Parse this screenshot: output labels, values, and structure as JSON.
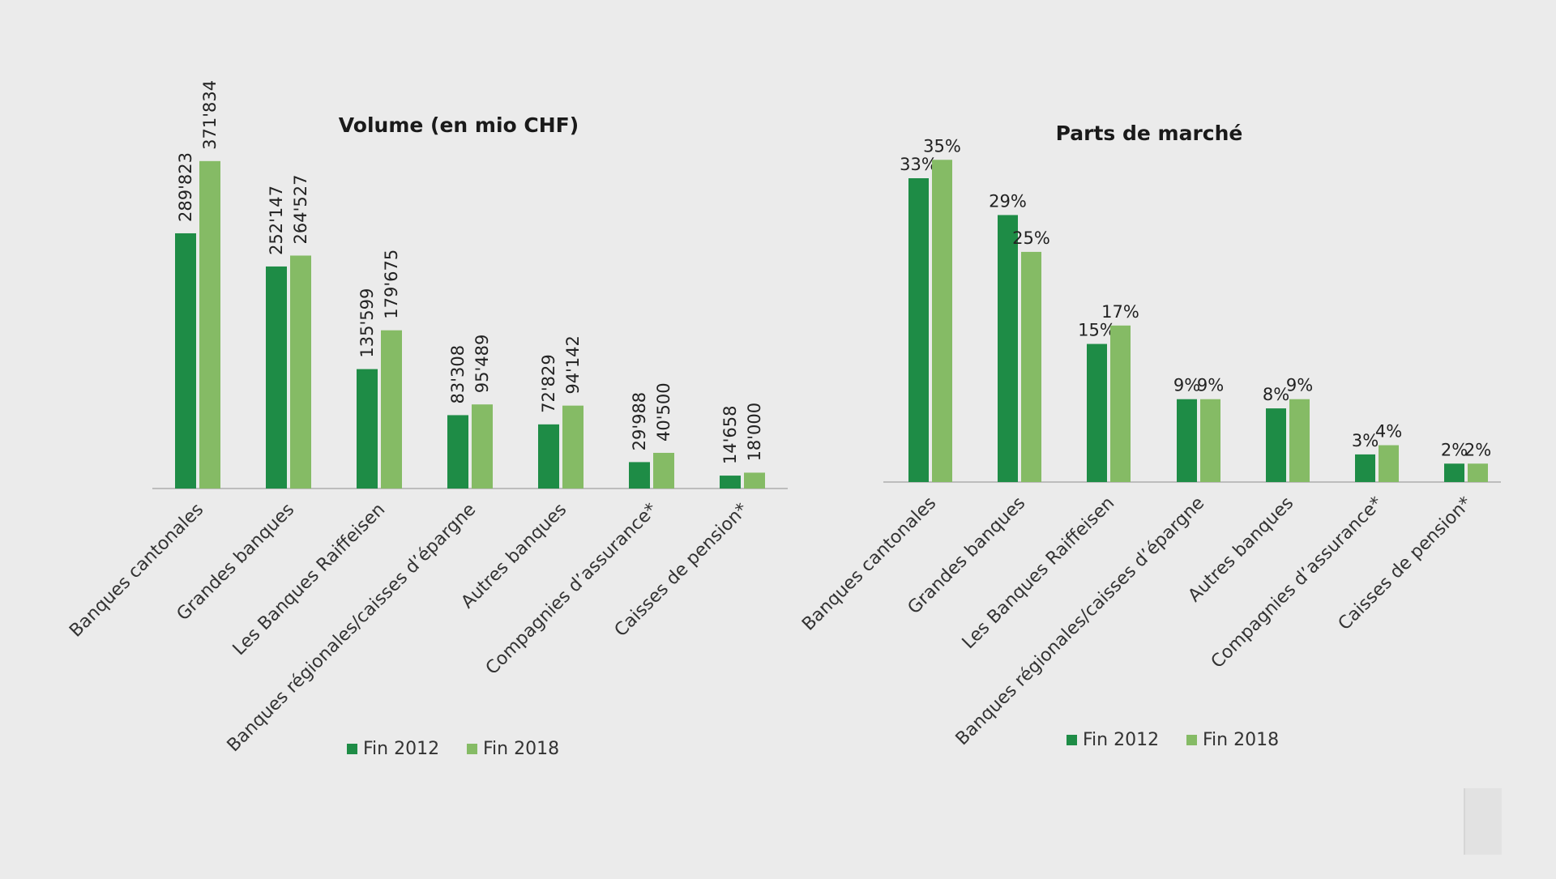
{
  "colors": {
    "fin_2012": "#1e8c46",
    "fin_2018": "#85bb65",
    "axis": "#bdbdbd",
    "background": "#ebebeb"
  },
  "chart_data": [
    {
      "type": "bar",
      "title": "Volume (en mio CHF)",
      "categories": [
        "Banques cantonales",
        "Grandes banques",
        "Les Banques Raiffeisen",
        "Banques régionales/caisses d’épargne",
        "Autres banques",
        "Compagnies d’assurance*",
        "Caisses de pension*"
      ],
      "series": [
        {
          "name": "Fin 2012",
          "values": [
            289823,
            252147,
            135599,
            83308,
            72829,
            29988,
            14658
          ],
          "labels": [
            "289'823",
            "252'147",
            "135'599",
            "83'308",
            "72'829",
            "29'988",
            "14'658"
          ]
        },
        {
          "name": "Fin 2018",
          "values": [
            371834,
            264527,
            179675,
            95489,
            94142,
            40500,
            18000
          ],
          "labels": [
            "371'834",
            "264'527",
            "179'675",
            "95'489",
            "94'142",
            "40'500",
            "18'000"
          ]
        }
      ],
      "ylim": [
        0,
        460000
      ],
      "grid": false,
      "legend": "bottom"
    },
    {
      "type": "bar",
      "title": "Parts de marché",
      "categories": [
        "Banques cantonales",
        "Grandes banques",
        "Les Banques Raiffeisen",
        "Banques régionales/caisses d’épargne",
        "Autres banques",
        "Compagnies d’assurance*",
        "Caisses de pension*"
      ],
      "series": [
        {
          "name": "Fin 2012",
          "values": [
            33,
            29,
            15,
            9,
            8,
            3,
            2
          ],
          "labels": [
            "33%",
            "29%",
            "15%",
            "9%",
            "8%",
            "3%",
            "2%"
          ]
        },
        {
          "name": "Fin 2018",
          "values": [
            35,
            25,
            17,
            9,
            9,
            4,
            2
          ],
          "labels": [
            "35%",
            "25%",
            "17%",
            "9%",
            "9%",
            "4%",
            "2%"
          ]
        }
      ],
      "ylim": [
        0,
        44
      ],
      "grid": false,
      "legend": "bottom"
    }
  ]
}
